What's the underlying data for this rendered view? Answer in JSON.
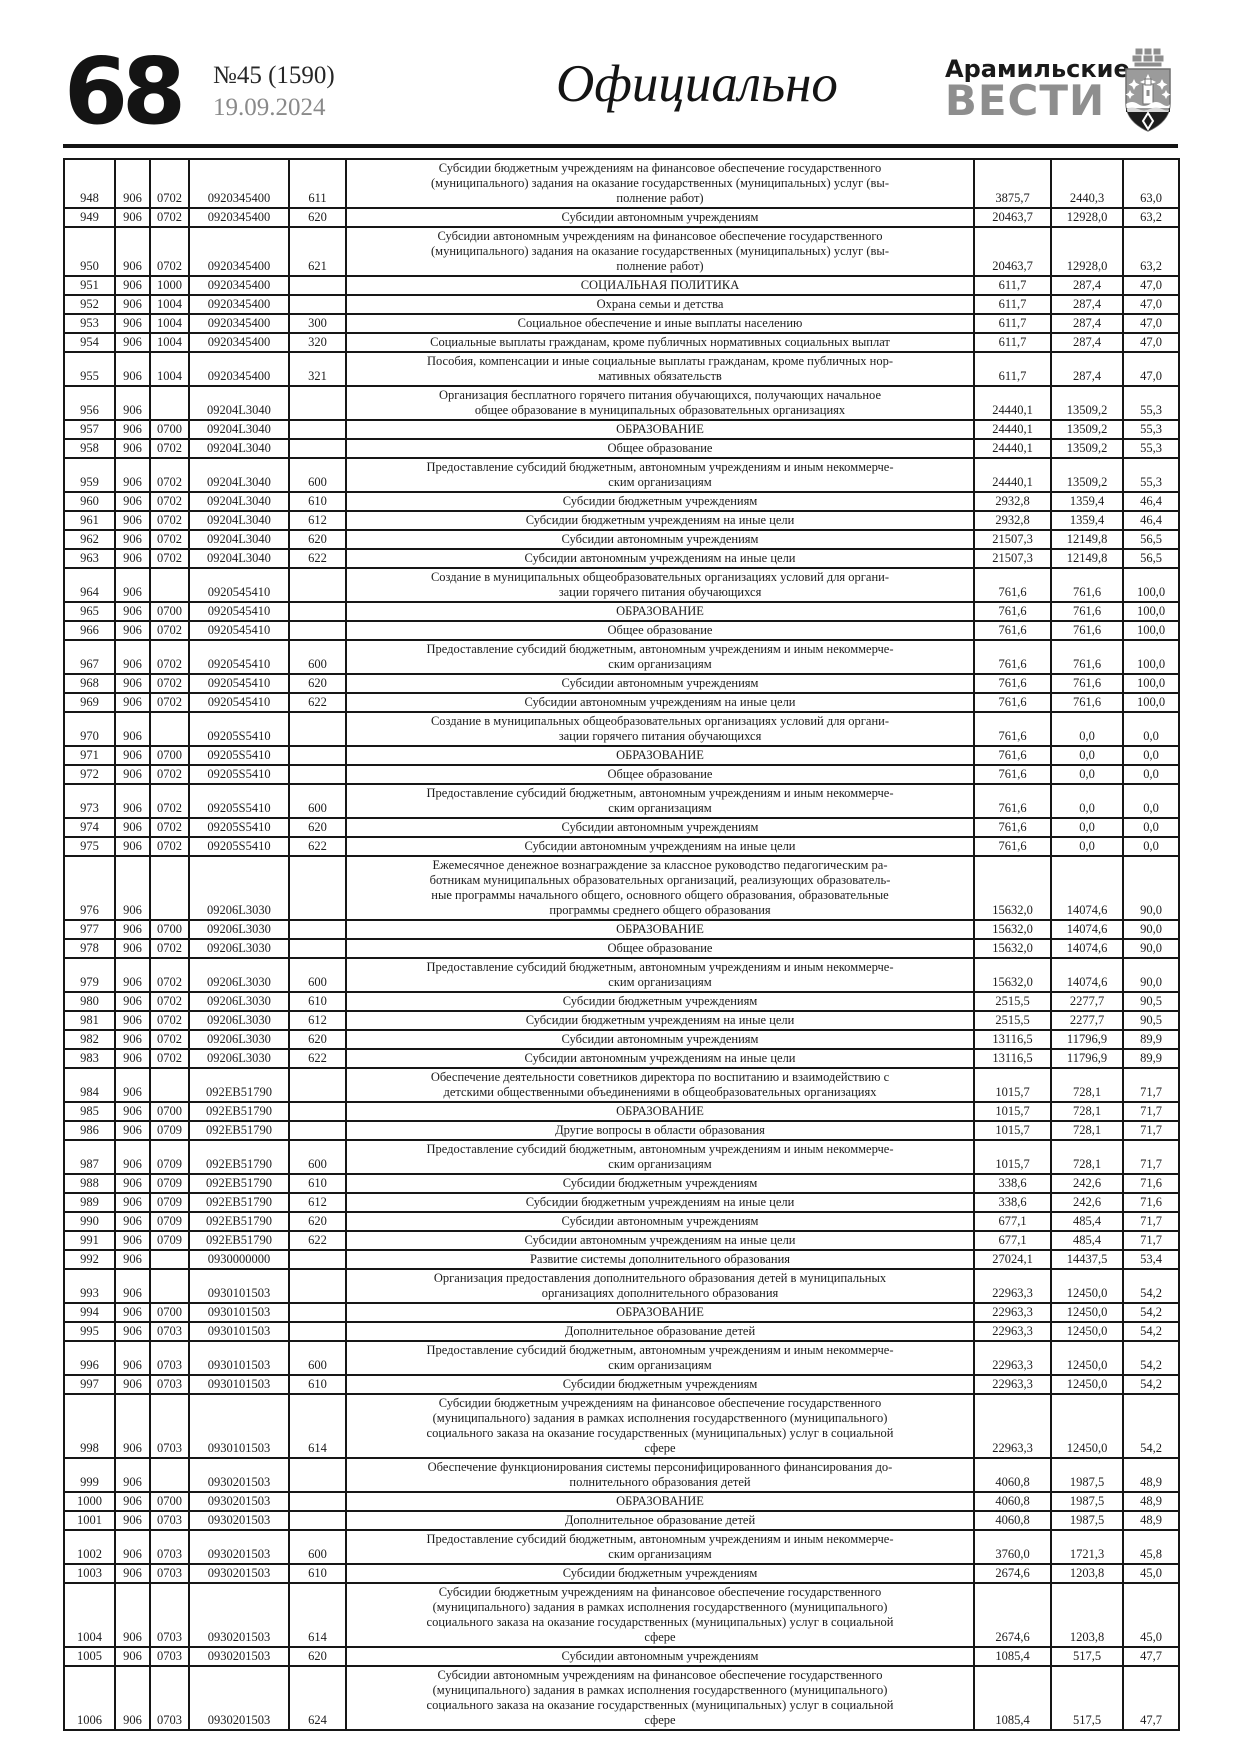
{
  "header": {
    "page_number": "68",
    "issue_number": "№45 (1590)",
    "issue_date": "19.09.2024",
    "section_title": "Официально",
    "masthead_top": "Арамильские",
    "masthead_bottom": "ВЕСТИ",
    "crest_icon": "city-coat-of-arms"
  },
  "colors": {
    "ink": "#1c1c1c",
    "masthead_gray": "#8e8e8e",
    "date_gray": "#8a8a8a",
    "border": "#161616"
  },
  "table": {
    "columns": [
      "row-number",
      "grbs-code",
      "section-code",
      "target-article",
      "expense-type",
      "description",
      "approved-amount",
      "executed-amount",
      "percent"
    ],
    "rows": [
      [
        "948",
        "906",
        "0702",
        "0920345400",
        "611",
        "Субсидии бюджетным учреждениям на финансовое обеспечение государственного\n(муниципального) задания на оказание государственных (муниципальных) услуг (вы-\nполнение работ)",
        "3875,7",
        "2440,3",
        "63,0"
      ],
      [
        "949",
        "906",
        "0702",
        "0920345400",
        "620",
        "Субсидии автономным учреждениям",
        "20463,7",
        "12928,0",
        "63,2"
      ],
      [
        "950",
        "906",
        "0702",
        "0920345400",
        "621",
        "Субсидии автономным учреждениям на финансовое обеспечение государственного\n(муниципального) задания на оказание государственных (муниципальных) услуг (вы-\nполнение работ)",
        "20463,7",
        "12928,0",
        "63,2"
      ],
      [
        "951",
        "906",
        "1000",
        "0920345400",
        "",
        "СОЦИАЛЬНАЯ ПОЛИТИКА",
        "611,7",
        "287,4",
        "47,0"
      ],
      [
        "952",
        "906",
        "1004",
        "0920345400",
        "",
        "Охрана семьи и детства",
        "611,7",
        "287,4",
        "47,0"
      ],
      [
        "953",
        "906",
        "1004",
        "0920345400",
        "300",
        "Социальное обеспечение и иные выплаты населению",
        "611,7",
        "287,4",
        "47,0"
      ],
      [
        "954",
        "906",
        "1004",
        "0920345400",
        "320",
        "Социальные выплаты гражданам, кроме публичных нормативных социальных выплат",
        "611,7",
        "287,4",
        "47,0"
      ],
      [
        "955",
        "906",
        "1004",
        "0920345400",
        "321",
        "Пособия, компенсации и иные социальные выплаты гражданам, кроме публичных нор-\nмативных обязательств",
        "611,7",
        "287,4",
        "47,0"
      ],
      [
        "956",
        "906",
        "",
        "09204L3040",
        "",
        "Организация бесплатного горячего питания обучающихся, получающих начальное\nобщее образование в муниципальных образовательных организациях",
        "24440,1",
        "13509,2",
        "55,3"
      ],
      [
        "957",
        "906",
        "0700",
        "09204L3040",
        "",
        "ОБРАЗОВАНИЕ",
        "24440,1",
        "13509,2",
        "55,3"
      ],
      [
        "958",
        "906",
        "0702",
        "09204L3040",
        "",
        "Общее образование",
        "24440,1",
        "13509,2",
        "55,3"
      ],
      [
        "959",
        "906",
        "0702",
        "09204L3040",
        "600",
        "Предоставление субсидий бюджетным, автономным учреждениям и иным некоммерче-\nским организациям",
        "24440,1",
        "13509,2",
        "55,3"
      ],
      [
        "960",
        "906",
        "0702",
        "09204L3040",
        "610",
        "Субсидии бюджетным учреждениям",
        "2932,8",
        "1359,4",
        "46,4"
      ],
      [
        "961",
        "906",
        "0702",
        "09204L3040",
        "612",
        "Субсидии бюджетным учреждениям на иные цели",
        "2932,8",
        "1359,4",
        "46,4"
      ],
      [
        "962",
        "906",
        "0702",
        "09204L3040",
        "620",
        "Субсидии автономным учреждениям",
        "21507,3",
        "12149,8",
        "56,5"
      ],
      [
        "963",
        "906",
        "0702",
        "09204L3040",
        "622",
        "Субсидии автономным учреждениям на иные цели",
        "21507,3",
        "12149,8",
        "56,5"
      ],
      [
        "964",
        "906",
        "",
        "0920545410",
        "",
        "Создание в муниципальных общеобразовательных организациях условий для органи-\nзации горячего питания обучающихся",
        "761,6",
        "761,6",
        "100,0"
      ],
      [
        "965",
        "906",
        "0700",
        "0920545410",
        "",
        "ОБРАЗОВАНИЕ",
        "761,6",
        "761,6",
        "100,0"
      ],
      [
        "966",
        "906",
        "0702",
        "0920545410",
        "",
        "Общее образование",
        "761,6",
        "761,6",
        "100,0"
      ],
      [
        "967",
        "906",
        "0702",
        "0920545410",
        "600",
        "Предоставление субсидий бюджетным, автономным учреждениям и иным некоммерче-\nским организациям",
        "761,6",
        "761,6",
        "100,0"
      ],
      [
        "968",
        "906",
        "0702",
        "0920545410",
        "620",
        "Субсидии автономным учреждениям",
        "761,6",
        "761,6",
        "100,0"
      ],
      [
        "969",
        "906",
        "0702",
        "0920545410",
        "622",
        "Субсидии автономным учреждениям на иные цели",
        "761,6",
        "761,6",
        "100,0"
      ],
      [
        "970",
        "906",
        "",
        "09205S5410",
        "",
        "Создание в муниципальных общеобразовательных организациях условий для органи-\nзации горячего питания обучающихся",
        "761,6",
        "0,0",
        "0,0"
      ],
      [
        "971",
        "906",
        "0700",
        "09205S5410",
        "",
        "ОБРАЗОВАНИЕ",
        "761,6",
        "0,0",
        "0,0"
      ],
      [
        "972",
        "906",
        "0702",
        "09205S5410",
        "",
        "Общее образование",
        "761,6",
        "0,0",
        "0,0"
      ],
      [
        "973",
        "906",
        "0702",
        "09205S5410",
        "600",
        "Предоставление субсидий бюджетным, автономным учреждениям и иным некоммерче-\nским организациям",
        "761,6",
        "0,0",
        "0,0"
      ],
      [
        "974",
        "906",
        "0702",
        "09205S5410",
        "620",
        "Субсидии автономным учреждениям",
        "761,6",
        "0,0",
        "0,0"
      ],
      [
        "975",
        "906",
        "0702",
        "09205S5410",
        "622",
        "Субсидии автономным учреждениям на иные цели",
        "761,6",
        "0,0",
        "0,0"
      ],
      [
        "976",
        "906",
        "",
        "09206L3030",
        "",
        "Ежемесячное денежное вознаграждение за классное руководство педагогическим ра-\nботникам муниципальных образовательных организаций, реализующих образователь-\nные программы начального общего, основного общего образования, образовательные\nпрограммы среднего общего образования",
        "15632,0",
        "14074,6",
        "90,0"
      ],
      [
        "977",
        "906",
        "0700",
        "09206L3030",
        "",
        "ОБРАЗОВАНИЕ",
        "15632,0",
        "14074,6",
        "90,0"
      ],
      [
        "978",
        "906",
        "0702",
        "09206L3030",
        "",
        "Общее образование",
        "15632,0",
        "14074,6",
        "90,0"
      ],
      [
        "979",
        "906",
        "0702",
        "09206L3030",
        "600",
        "Предоставление субсидий бюджетным, автономным учреждениям и иным некоммерче-\nским организациям",
        "15632,0",
        "14074,6",
        "90,0"
      ],
      [
        "980",
        "906",
        "0702",
        "09206L3030",
        "610",
        "Субсидии бюджетным учреждениям",
        "2515,5",
        "2277,7",
        "90,5"
      ],
      [
        "981",
        "906",
        "0702",
        "09206L3030",
        "612",
        "Субсидии бюджетным учреждениям на иные цели",
        "2515,5",
        "2277,7",
        "90,5"
      ],
      [
        "982",
        "906",
        "0702",
        "09206L3030",
        "620",
        "Субсидии автономным учреждениям",
        "13116,5",
        "11796,9",
        "89,9"
      ],
      [
        "983",
        "906",
        "0702",
        "09206L3030",
        "622",
        "Субсидии автономным учреждениям на иные цели",
        "13116,5",
        "11796,9",
        "89,9"
      ],
      [
        "984",
        "906",
        "",
        "092EB51790",
        "",
        "Обеспечение деятельности советников директора по воспитанию и взаимодействию с\nдетскими общественными объединениями в общеобразовательных организациях",
        "1015,7",
        "728,1",
        "71,7"
      ],
      [
        "985",
        "906",
        "0700",
        "092EB51790",
        "",
        "ОБРАЗОВАНИЕ",
        "1015,7",
        "728,1",
        "71,7"
      ],
      [
        "986",
        "906",
        "0709",
        "092EB51790",
        "",
        "Другие вопросы в области образования",
        "1015,7",
        "728,1",
        "71,7"
      ],
      [
        "987",
        "906",
        "0709",
        "092EB51790",
        "600",
        "Предоставление субсидий бюджетным, автономным учреждениям и иным некоммерче-\nским организациям",
        "1015,7",
        "728,1",
        "71,7"
      ],
      [
        "988",
        "906",
        "0709",
        "092EB51790",
        "610",
        "Субсидии бюджетным учреждениям",
        "338,6",
        "242,6",
        "71,6"
      ],
      [
        "989",
        "906",
        "0709",
        "092EB51790",
        "612",
        "Субсидии бюджетным учреждениям на иные цели",
        "338,6",
        "242,6",
        "71,6"
      ],
      [
        "990",
        "906",
        "0709",
        "092EB51790",
        "620",
        "Субсидии автономным учреждениям",
        "677,1",
        "485,4",
        "71,7"
      ],
      [
        "991",
        "906",
        "0709",
        "092EB51790",
        "622",
        "Субсидии автономным учреждениям на иные цели",
        "677,1",
        "485,4",
        "71,7"
      ],
      [
        "992",
        "906",
        "",
        "0930000000",
        "",
        "Развитие системы дополнительного образования",
        "27024,1",
        "14437,5",
        "53,4"
      ],
      [
        "993",
        "906",
        "",
        "0930101503",
        "",
        "Организация предоставления дополнительного образования детей в муниципальных\nорганизациях дополнительного образования",
        "22963,3",
        "12450,0",
        "54,2"
      ],
      [
        "994",
        "906",
        "0700",
        "0930101503",
        "",
        "ОБРАЗОВАНИЕ",
        "22963,3",
        "12450,0",
        "54,2"
      ],
      [
        "995",
        "906",
        "0703",
        "0930101503",
        "",
        "Дополнительное образование детей",
        "22963,3",
        "12450,0",
        "54,2"
      ],
      [
        "996",
        "906",
        "0703",
        "0930101503",
        "600",
        "Предоставление субсидий бюджетным, автономным учреждениям и иным некоммерче-\nским организациям",
        "22963,3",
        "12450,0",
        "54,2"
      ],
      [
        "997",
        "906",
        "0703",
        "0930101503",
        "610",
        "Субсидии бюджетным учреждениям",
        "22963,3",
        "12450,0",
        "54,2"
      ],
      [
        "998",
        "906",
        "0703",
        "0930101503",
        "614",
        "Субсидии бюджетным учреждениям на финансовое обеспечение государственного\n(муниципального) задания в рамках исполнения государственного (муниципального)\nсоциального заказа на оказание государственных (муниципальных) услуг в социальной\nсфере",
        "22963,3",
        "12450,0",
        "54,2"
      ],
      [
        "999",
        "906",
        "",
        "0930201503",
        "",
        "Обеспечение функционирования системы персонифицированного финансирования до-\nполнительного образования детей",
        "4060,8",
        "1987,5",
        "48,9"
      ],
      [
        "1000",
        "906",
        "0700",
        "0930201503",
        "",
        "ОБРАЗОВАНИЕ",
        "4060,8",
        "1987,5",
        "48,9"
      ],
      [
        "1001",
        "906",
        "0703",
        "0930201503",
        "",
        "Дополнительное образование детей",
        "4060,8",
        "1987,5",
        "48,9"
      ],
      [
        "1002",
        "906",
        "0703",
        "0930201503",
        "600",
        "Предоставление субсидий бюджетным, автономным учреждениям и иным некоммерче-\nским организациям",
        "3760,0",
        "1721,3",
        "45,8"
      ],
      [
        "1003",
        "906",
        "0703",
        "0930201503",
        "610",
        "Субсидии бюджетным учреждениям",
        "2674,6",
        "1203,8",
        "45,0"
      ],
      [
        "1004",
        "906",
        "0703",
        "0930201503",
        "614",
        "Субсидии бюджетным учреждениям на финансовое обеспечение государственного\n(муниципального) задания в рамках исполнения государственного (муниципального)\nсоциального заказа на оказание государственных (муниципальных) услуг в социальной\nсфере",
        "2674,6",
        "1203,8",
        "45,0"
      ],
      [
        "1005",
        "906",
        "0703",
        "0930201503",
        "620",
        "Субсидии автономным учреждениям",
        "1085,4",
        "517,5",
        "47,7"
      ],
      [
        "1006",
        "906",
        "0703",
        "0930201503",
        "624",
        "Субсидии автономным учреждениям на финансовое обеспечение государственного\n(муниципального) задания в рамках исполнения государственного (муниципального)\nсоциального заказа на оказание государственных (муниципальных) услуг в социальной\nсфере",
        "1085,4",
        "517,5",
        "47,7"
      ]
    ]
  }
}
